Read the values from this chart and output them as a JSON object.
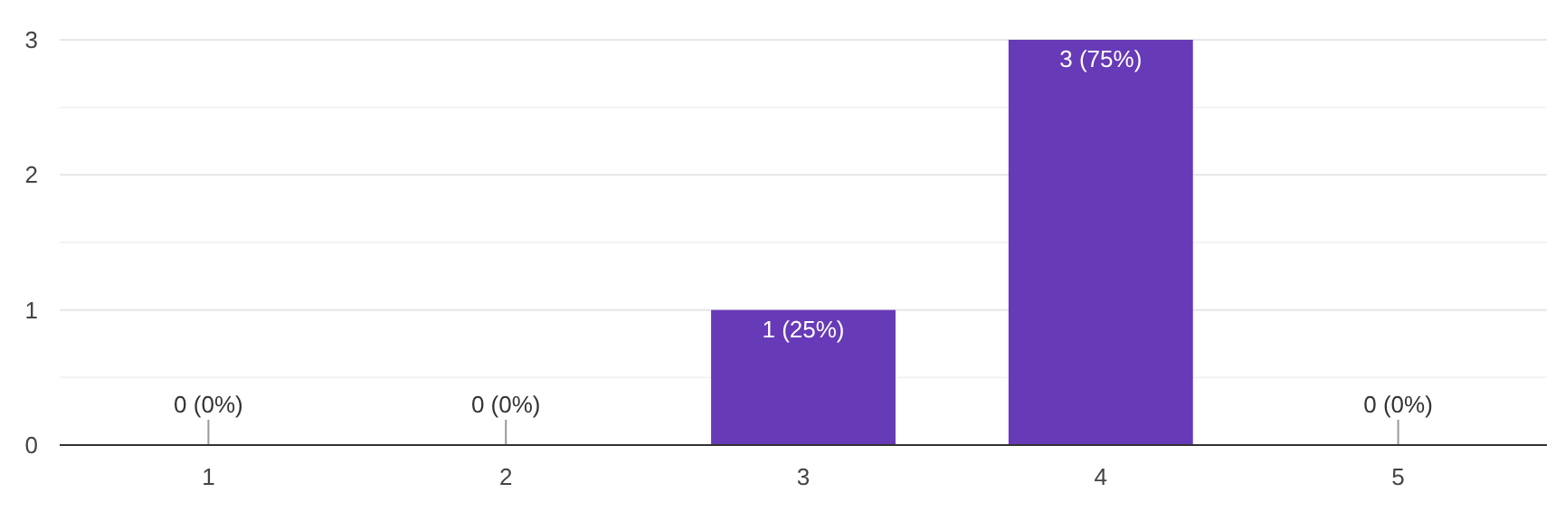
{
  "chart_data": {
    "type": "bar",
    "categories": [
      "1",
      "2",
      "3",
      "4",
      "5"
    ],
    "values": [
      0,
      0,
      1,
      3,
      0
    ],
    "color": "#673ab7",
    "value_labels": [
      "0 (0%)",
      "0 (0%)",
      "1 (25%)",
      "3 (75%)",
      "0 (0%)"
    ],
    "ylim": [
      0,
      3
    ],
    "yticks": [
      0,
      {
        "value": 0.5,
        "label": null
      },
      1,
      {
        "value": 1.5,
        "label": null
      },
      2,
      {
        "value": 2.5,
        "label": null
      },
      3
    ],
    "grid": "y"
  }
}
